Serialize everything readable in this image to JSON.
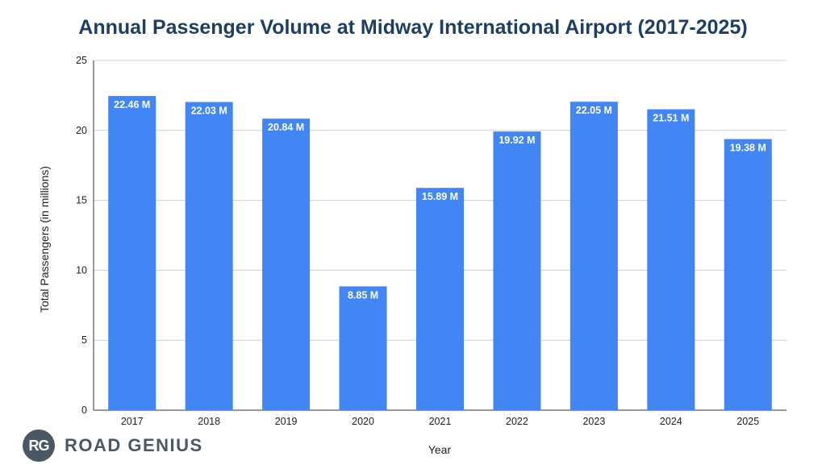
{
  "chart_data": {
    "type": "bar",
    "title": "Annual Passenger Volume at Midway International Airport (2017-2025)",
    "xlabel": "Year",
    "ylabel": "Total Passengers (in millions)",
    "ylim": [
      0,
      25
    ],
    "yticks": [
      0,
      5,
      10,
      15,
      20,
      25
    ],
    "grid": true,
    "categories": [
      "2017",
      "2018",
      "2019",
      "2020",
      "2021",
      "2022",
      "2023",
      "2024",
      "2025"
    ],
    "values": [
      22.46,
      22.03,
      20.84,
      8.85,
      15.89,
      19.92,
      22.05,
      21.51,
      19.38
    ],
    "data_labels": [
      "22.46 M",
      "22.03 M",
      "20.84 M",
      "8.85 M",
      "15.89 M",
      "19.92 M",
      "22.05 M",
      "21.51 M",
      "19.38 M"
    ],
    "bar_color": "#4285f4"
  },
  "logo": {
    "badge": "RG",
    "text": "ROAD GENIUS"
  }
}
